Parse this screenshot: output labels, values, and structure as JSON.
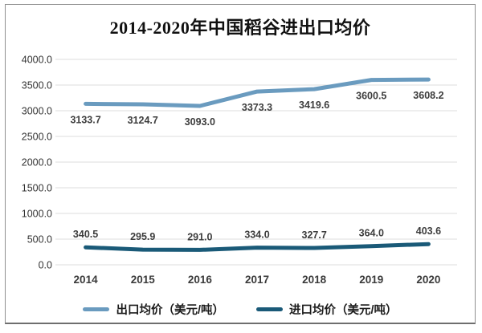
{
  "title": "2014-2020年中国稻谷进出口均价",
  "chart_data": {
    "type": "line",
    "title": "2014-2020年中国稻谷进出口均价",
    "x": [
      "2014",
      "2015",
      "2016",
      "2017",
      "2018",
      "2019",
      "2020"
    ],
    "series": [
      {
        "name": "出口均价（美元/吨）",
        "values": [
          3133.7,
          3124.7,
          3093.0,
          3373.3,
          3419.6,
          3600.5,
          3608.2
        ],
        "color": "#6a9bbf",
        "label_position": "below"
      },
      {
        "name": "进口均价（美元/吨）",
        "values": [
          340.5,
          295.9,
          291.0,
          334.0,
          327.7,
          364.0,
          403.6
        ],
        "color": "#1a5a78",
        "label_position": "above"
      }
    ],
    "ylim": [
      0,
      4000
    ],
    "ytick_step": 500,
    "ytick_labels": [
      "0.0",
      "500.0",
      "1000.0",
      "1500.0",
      "2000.0",
      "2500.0",
      "3000.0",
      "3500.0",
      "4000.0"
    ],
    "grid": true,
    "legend_position": "bottom",
    "colors": {
      "grid": "#dcdcdc",
      "axis_text": "#333333",
      "data_label_text": "#3d3d3d",
      "title_text": "#111111"
    }
  }
}
